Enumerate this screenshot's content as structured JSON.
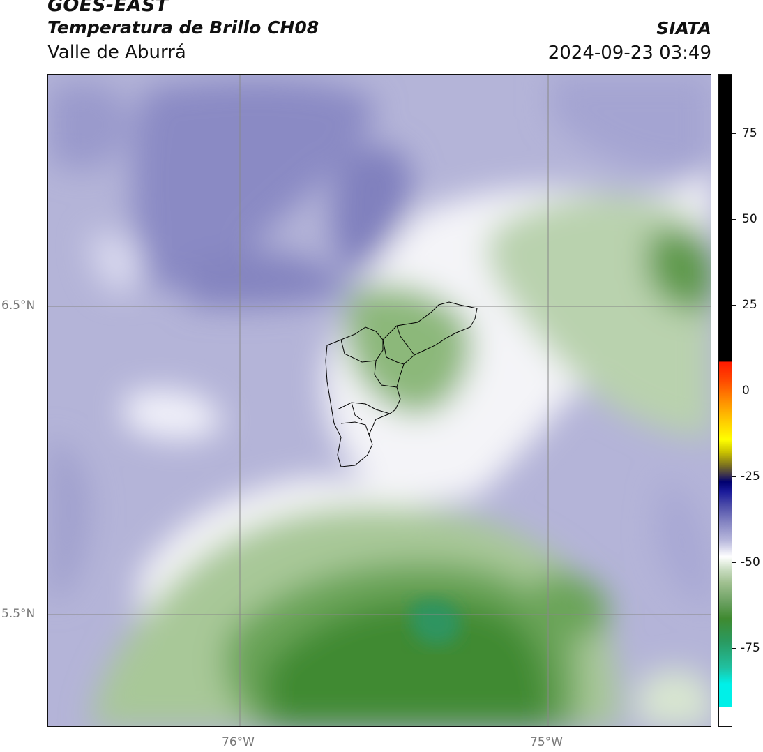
{
  "header": {
    "satellite": "GOES-EAST",
    "product": "Temperatura de Brillo CH08",
    "region": "Valle de Aburrá",
    "agency": "SIATA",
    "datetime": "2024-09-23 03:49"
  },
  "map": {
    "lat_labels": [
      "6.5°N",
      "5.5°N"
    ],
    "lon_labels": [
      "76°W",
      "75°W"
    ],
    "colors": {
      "dry_high": "#7f7fbd",
      "mid": "#ffffff",
      "moist": "#3f8a30"
    }
  },
  "colorbar": {
    "tick_labels": [
      "75",
      "50",
      "25",
      "0",
      "-25",
      "-50",
      "-75"
    ]
  }
}
